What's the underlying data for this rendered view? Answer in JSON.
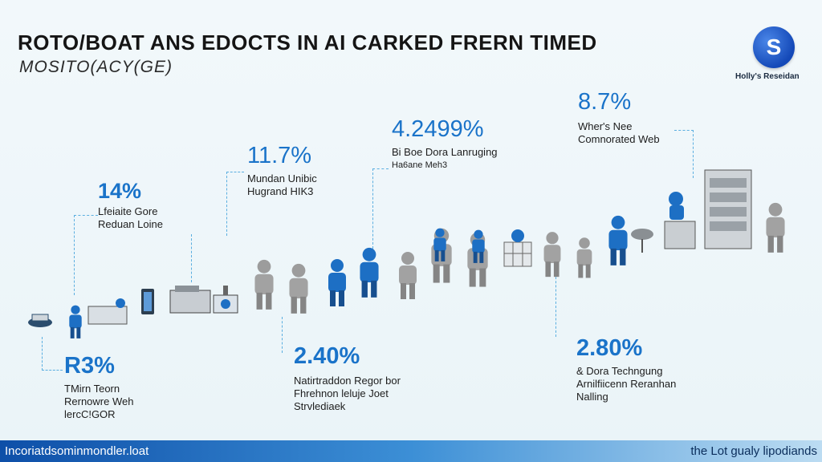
{
  "header": {
    "title": "ROTO/BOAT ANS EDOCTS IN AI CARKED FRERN TIMED",
    "subtitle": "MOSITO(ACY(GE)",
    "logo_letter": "S",
    "brand": "Holly's Reseidan"
  },
  "stats": [
    {
      "value": "R3%",
      "lines": [
        "TMirn Teorn",
        "Rernowre Weh",
        "lercC!GOR"
      ]
    },
    {
      "value": "14%",
      "lines": [
        "Lfeiaite Gore",
        "Reduan Loine"
      ]
    },
    {
      "value": "11.7%",
      "lines": [
        "Mundan Unibic",
        "Hugrand HIK3"
      ]
    },
    {
      "value": "2.40%",
      "lines": [
        "Natirtraddon Regor bor",
        "Fhrehnon leluje Joet",
        "Strvlediaek"
      ]
    },
    {
      "value": "4.2499%",
      "lines": [
        "Bi Boe Dora Lanruging",
        "Ha6ane Meh3"
      ]
    },
    {
      "value": "8.7%",
      "lines": [
        "Wher's Nee",
        "Comnorated Web"
      ]
    },
    {
      "value": "2.80%",
      "lines": [
        "& Dora Techngung",
        "Arnilfiicenn Reranhan",
        "Nalling"
      ]
    }
  ],
  "footer": {
    "left": "Incoriatdsominmondler.loat",
    "right": "the Lot gualy lipodiands"
  },
  "colors": {
    "accent": "#1a73c9",
    "figure_blue": "#1d6fc4",
    "figure_gray": "#9a9a9a",
    "footer_start": "#0e4fa8"
  }
}
